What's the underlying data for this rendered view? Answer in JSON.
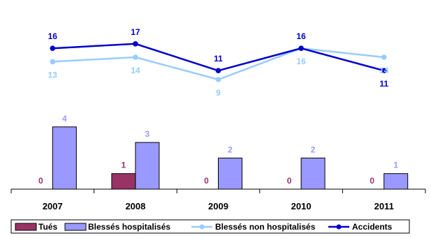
{
  "chart_data": {
    "type": "bar+line",
    "categories": [
      "2007",
      "2008",
      "2009",
      "2010",
      "2011"
    ],
    "bar_series": [
      {
        "name": "Tués",
        "values": [
          0,
          1,
          0,
          0,
          0
        ],
        "color": "#993366"
      },
      {
        "name": "Blessés hospitalisés",
        "values": [
          4,
          3,
          2,
          2,
          1
        ],
        "color": "#9999FF"
      }
    ],
    "line_series": [
      {
        "name": "Blessés non hospitalisés",
        "values": [
          13,
          14,
          9,
          16,
          14
        ],
        "color": "#99CCFF"
      },
      {
        "name": "Accidents",
        "values": [
          16,
          17,
          11,
          16,
          11
        ],
        "color": "#0000CC"
      }
    ],
    "legend_position": "bottom",
    "grid": false
  }
}
